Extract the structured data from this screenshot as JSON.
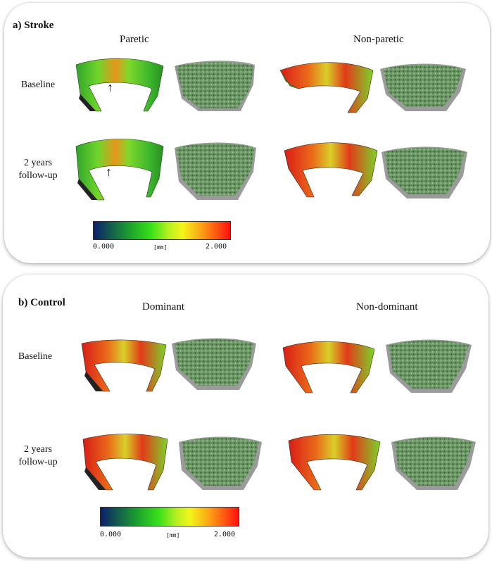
{
  "colors": {
    "colormap": [
      "#0b1f6b",
      "#1a9a2f",
      "#38e018",
      "#b8f020",
      "#f4f51a",
      "#fd9a14",
      "#f2321f",
      "#ff1010"
    ],
    "trabecular": "#7ea877",
    "cortex_shell": "#9b9b9b"
  },
  "stroke": {
    "title": "a) Stroke",
    "columns": [
      "Paretic",
      "Non-paretic"
    ],
    "rows": [
      "Baseline",
      "2 years follow-up"
    ],
    "arrow_label": "↑",
    "colorbar": {
      "min_label": "0.000",
      "unit": "[mm]",
      "max_label": "2.000"
    }
  },
  "control": {
    "title": "b) Control",
    "columns": [
      "Dominant",
      "Non-dominant"
    ],
    "rows": [
      "Baseline",
      "2 years follow-up"
    ],
    "colorbar": {
      "min_label": "0.000",
      "unit": "[mm]",
      "max_label": "2.000"
    }
  }
}
